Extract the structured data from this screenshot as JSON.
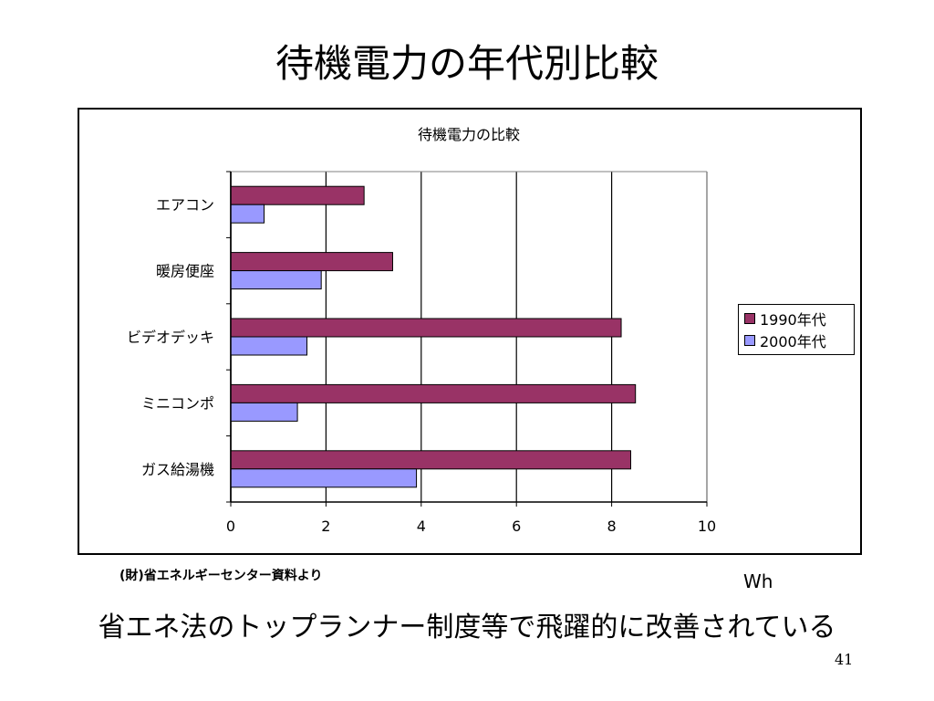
{
  "slide": {
    "title": "待機電力の年代別比較",
    "source": "(財)省エネルギーセンター資料より",
    "unit": "Wh",
    "subtitle": "省エネ法のトップランナー制度等で飛躍的に改善されている",
    "page_number": "41"
  },
  "chart_data": {
    "type": "bar",
    "orientation": "horizontal",
    "title": "待機電力の比較",
    "categories": [
      "エアコン",
      "暖房便座",
      "ビデオデッキ",
      "ミニコンポ",
      "ガス給湯機"
    ],
    "series": [
      {
        "name": "1990年代",
        "values": [
          2.8,
          3.4,
          8.2,
          8.5,
          8.4
        ],
        "color": "#993366"
      },
      {
        "name": "2000年代",
        "values": [
          0.7,
          1.9,
          1.6,
          1.4,
          3.9
        ],
        "color": "#9999FF"
      }
    ],
    "xlim": [
      0,
      10
    ],
    "xticks": [
      "0",
      "2",
      "4",
      "6",
      "8",
      "10"
    ],
    "grid": "vertical",
    "legend_position": "right"
  }
}
